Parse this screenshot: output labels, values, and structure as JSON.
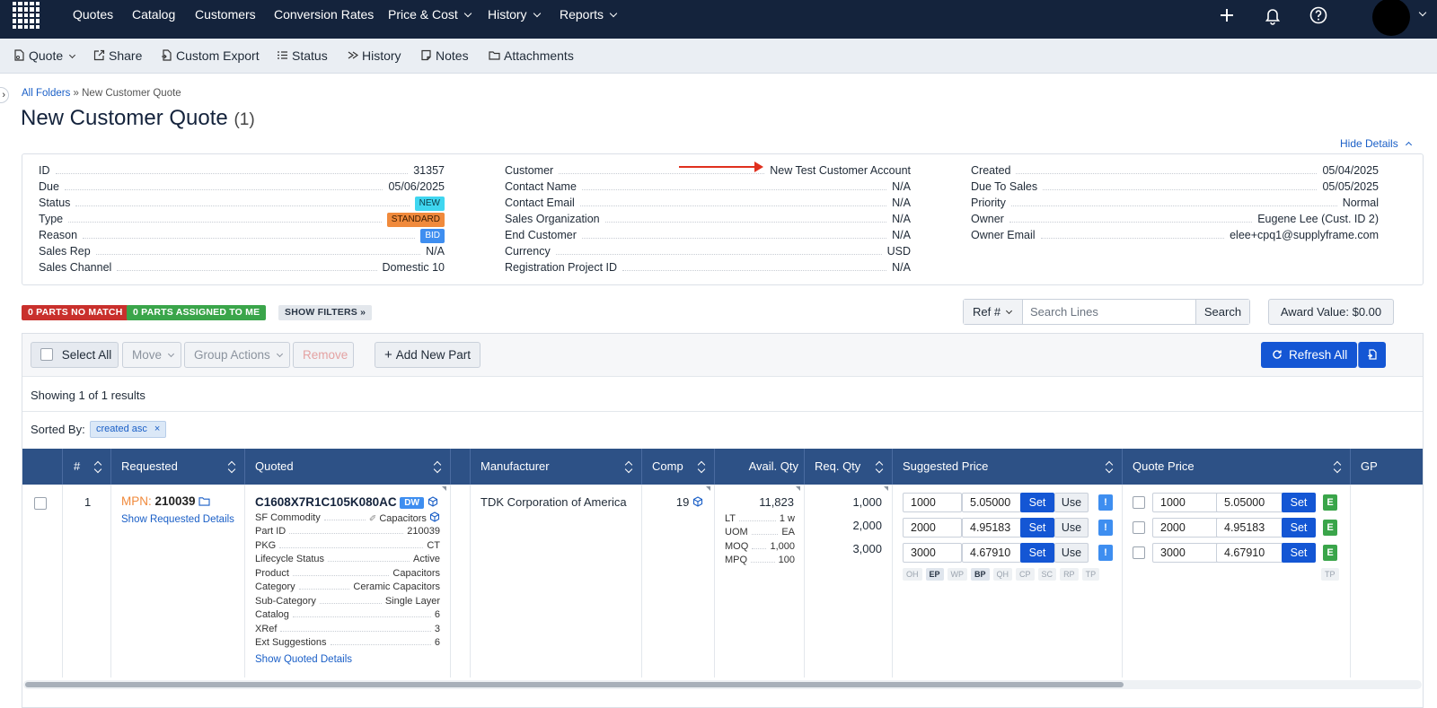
{
  "topnav": {
    "items": [
      {
        "label": "Quotes",
        "dropdown": false
      },
      {
        "label": "Catalog",
        "dropdown": false
      },
      {
        "label": "Customers",
        "dropdown": false
      },
      {
        "label": "Conversion Rates",
        "dropdown": false
      },
      {
        "label": "Price & Cost",
        "dropdown": true
      },
      {
        "label": "History",
        "dropdown": true
      },
      {
        "label": "Reports",
        "dropdown": true
      }
    ],
    "icons": [
      "plus-icon",
      "bell-icon",
      "help-icon",
      "avatar"
    ]
  },
  "toolbar": {
    "quote": "Quote",
    "share": "Share",
    "custom_export": "Custom Export",
    "status": "Status",
    "history": "History",
    "notes": "Notes",
    "attachments": "Attachments"
  },
  "breadcrumb": {
    "root": "All Folders",
    "separator": " » ",
    "current": "New Customer Quote"
  },
  "page": {
    "title": "New Customer Quote",
    "count": "(1)",
    "hide_details": "Hide Details"
  },
  "details": {
    "col1": [
      {
        "label": "ID",
        "value": "31357"
      },
      {
        "label": "Due",
        "value": "05/06/2025"
      },
      {
        "label": "Status",
        "value": "NEW",
        "badge": "new"
      },
      {
        "label": "Type",
        "value": "STANDARD",
        "badge": "std"
      },
      {
        "label": "Reason",
        "value": "BID",
        "badge": "bid"
      },
      {
        "label": "Sales Rep",
        "value": "N/A"
      },
      {
        "label": "Sales Channel",
        "value": "Domestic 10"
      }
    ],
    "col2": [
      {
        "label": "Customer",
        "value": "New Test Customer Account"
      },
      {
        "label": "Contact Name",
        "value": "N/A"
      },
      {
        "label": "Contact Email",
        "value": "N/A"
      },
      {
        "label": "Sales Organization",
        "value": "N/A"
      },
      {
        "label": "End Customer",
        "value": "N/A"
      },
      {
        "label": "Currency",
        "value": "USD"
      },
      {
        "label": "Registration Project ID",
        "value": "N/A"
      }
    ],
    "col3": [
      {
        "label": "Created",
        "value": "05/04/2025"
      },
      {
        "label": "Due To Sales",
        "value": "05/05/2025"
      },
      {
        "label": "Priority",
        "value": "Normal"
      },
      {
        "label": "Owner",
        "value": "Eugene Lee (Cust. ID 2)"
      },
      {
        "label": "Owner Email",
        "value": "elee+cpq1@supplyframe.com"
      }
    ]
  },
  "filters": {
    "no_match": "0 PARTS NO MATCH",
    "assigned": "0 PARTS ASSIGNED TO ME",
    "show_filters": "SHOW FILTERS »"
  },
  "search": {
    "ref": "Ref #",
    "placeholder": "Search Lines",
    "button": "Search"
  },
  "award": "Award Value:  $0.00",
  "actions": {
    "select_all": "Select All",
    "move": "Move",
    "group_actions": "Group Actions",
    "remove": "Remove",
    "add_part": "Add New Part",
    "refresh_all": "Refresh All"
  },
  "results": {
    "showing": "Showing 1 of 1 results",
    "sorted_by": "Sorted By:",
    "sort_chip": "created asc"
  },
  "table": {
    "headers": {
      "num": "#",
      "requested": "Requested",
      "quoted": "Quoted",
      "manufacturer": "Manufacturer",
      "comp": "Comp",
      "avail_qty": "Avail. Qty",
      "req_qty": "Req. Qty",
      "suggested_price": "Suggested Price",
      "quote_price": "Quote Price",
      "gp": "GP"
    },
    "row": {
      "num": "1",
      "requested": {
        "mpn_label": "MPN:",
        "mpn": "210039",
        "link": "Show Requested Details"
      },
      "quoted": {
        "part": "C1608X7R1C105K080AC",
        "badge": "DW",
        "details": [
          {
            "k": "SF Commodity",
            "v": "Capacitors"
          },
          {
            "k": "Part ID",
            "v": "210039"
          },
          {
            "k": "PKG",
            "v": "CT"
          },
          {
            "k": "Lifecycle Status",
            "v": "Active"
          },
          {
            "k": "Product",
            "v": "Capacitors"
          },
          {
            "k": "Category",
            "v": "Ceramic Capacitors"
          },
          {
            "k": "Sub-Category",
            "v": "Single Layer"
          },
          {
            "k": "Catalog",
            "v": "6"
          },
          {
            "k": "XRef",
            "v": "3"
          },
          {
            "k": "Ext Suggestions",
            "v": "6"
          }
        ],
        "link": "Show Quoted Details"
      },
      "manufacturer": "TDK Corporation of America",
      "comp": "19",
      "avail": {
        "qty": "11,823",
        "details": [
          {
            "k": "LT",
            "v": "1 w"
          },
          {
            "k": "UOM",
            "v": "EA"
          },
          {
            "k": "MOQ",
            "v": "1,000"
          },
          {
            "k": "MPQ",
            "v": "100"
          }
        ]
      },
      "req_qty": [
        "1,000",
        "2,000",
        "3,000"
      ],
      "suggested": [
        {
          "qty": "1000",
          "price": "5.05000"
        },
        {
          "qty": "2000",
          "price": "4.95183"
        },
        {
          "qty": "3000",
          "price": "4.67910"
        }
      ],
      "suggested_buttons": {
        "set": "Set",
        "use": "Use",
        "warn": "!"
      },
      "suggested_tags": [
        "OH",
        "EP",
        "WP",
        "BP",
        "QH",
        "CP",
        "SC",
        "RP",
        "TP"
      ],
      "suggested_tags_active": [
        "EP",
        "BP"
      ],
      "quote": [
        {
          "qty": "1000",
          "price": "5.05000"
        },
        {
          "qty": "2000",
          "price": "4.95183"
        },
        {
          "qty": "3000",
          "price": "4.67910"
        }
      ],
      "quote_buttons": {
        "set": "Set",
        "e": "E"
      },
      "quote_tag": "TP"
    }
  }
}
